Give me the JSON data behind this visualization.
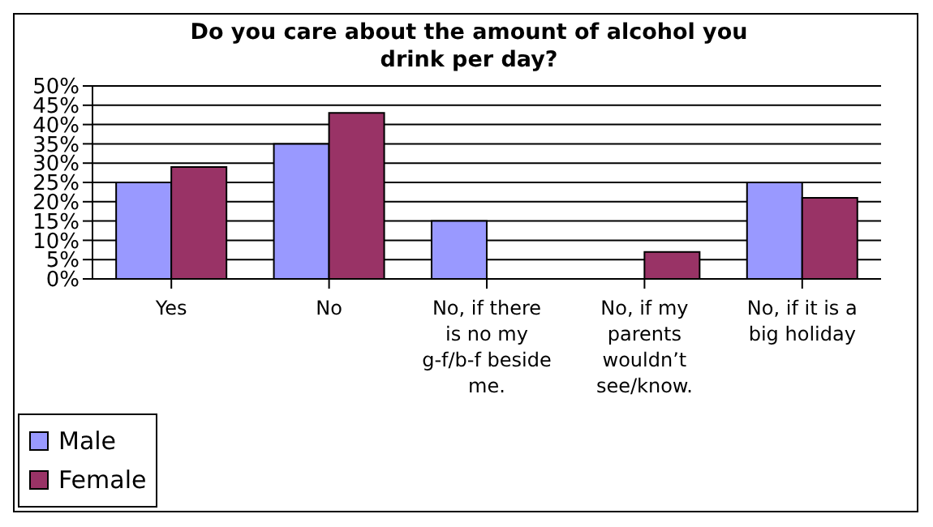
{
  "chart_data": {
    "type": "bar",
    "title": "Do you care about the amount of alcohol you drink per day?",
    "categories": [
      "Yes",
      "No",
      "No, if there is no my g-f/b-f beside me.",
      "No, if my parents wouldn’t see/know.",
      "No, if it is a big holiday"
    ],
    "series": [
      {
        "name": "Male",
        "color": "#9999ff",
        "values": [
          25,
          35,
          15,
          0,
          25
        ]
      },
      {
        "name": "Female",
        "color": "#993366",
        "values": [
          29,
          43,
          0,
          7,
          21
        ]
      }
    ],
    "ylim": [
      0,
      50
    ],
    "yticks": [
      {
        "value": 0,
        "label": "0%"
      },
      {
        "value": 5,
        "label": "5%"
      },
      {
        "value": 10,
        "label": "10%"
      },
      {
        "value": 15,
        "label": "15%"
      },
      {
        "value": 20,
        "label": "20%"
      },
      {
        "value": 25,
        "label": "25%"
      },
      {
        "value": 30,
        "label": "30%"
      },
      {
        "value": 35,
        "label": "35%"
      },
      {
        "value": 40,
        "label": "40%"
      },
      {
        "value": 45,
        "label": "45%"
      },
      {
        "value": 50,
        "label": "50%"
      }
    ],
    "grid": "y",
    "legend": "bottom left"
  }
}
